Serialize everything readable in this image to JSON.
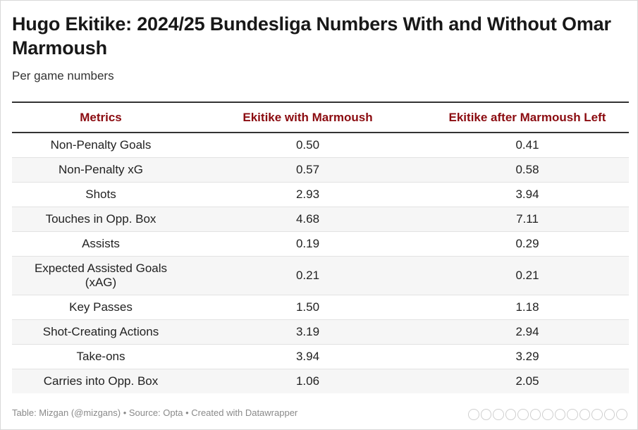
{
  "title": "Hugo Ekitike: 2024/25 Bundesliga Numbers With and Without Omar Marmoush",
  "subtitle": "Per game numbers",
  "chart_data": {
    "type": "table",
    "columns": [
      "Metrics",
      "Ekitike with Marmoush",
      "Ekitike after Marmoush Left"
    ],
    "rows": [
      [
        "Non-Penalty Goals",
        "0.50",
        "0.41"
      ],
      [
        "Non-Penalty xG",
        "0.57",
        "0.58"
      ],
      [
        "Shots",
        "2.93",
        "3.94"
      ],
      [
        "Touches in Opp. Box",
        "4.68",
        "7.11"
      ],
      [
        "Assists",
        "0.19",
        "0.29"
      ],
      [
        "Expected Assisted Goals (xAG)",
        "0.21",
        "0.21"
      ],
      [
        "Key Passes",
        "1.50",
        "1.18"
      ],
      [
        "Shot-Creating Actions",
        "3.19",
        "2.94"
      ],
      [
        "Take-ons",
        "3.94",
        "3.29"
      ],
      [
        "Carries into Opp. Box",
        "1.06",
        "2.05"
      ]
    ]
  },
  "footer": "Table: Mizgan (@mizgans) • Source: Opta • Created with Datawrapper",
  "colors": {
    "header_text": "#8b0b10",
    "alt_row": "#f6f6f6"
  }
}
